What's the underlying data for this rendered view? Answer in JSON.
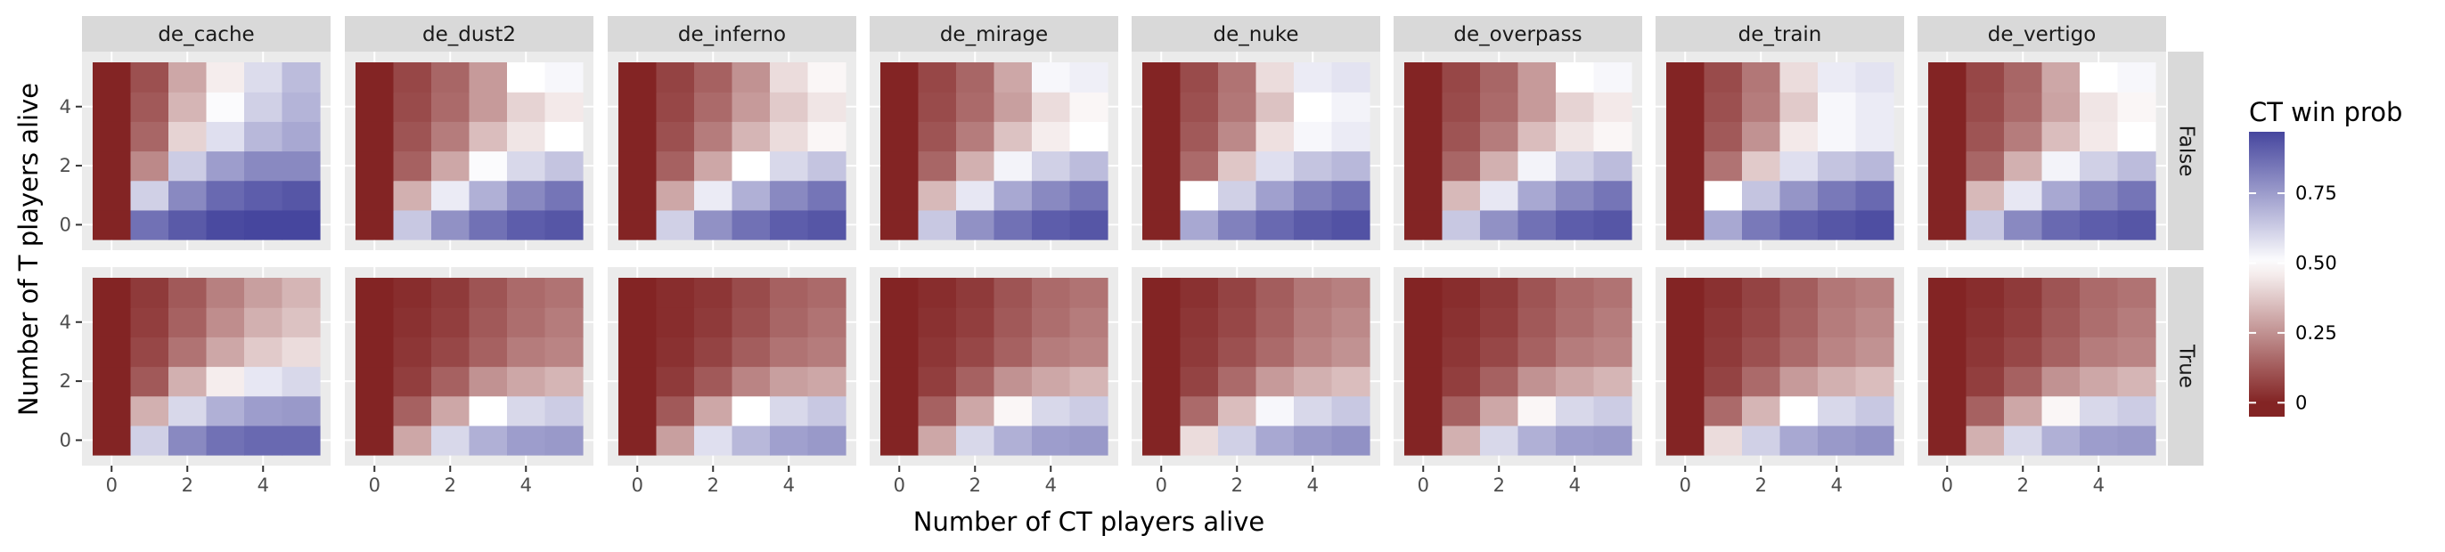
{
  "chart_data": {
    "type": "heatmap",
    "facet_columns": [
      "de_cache",
      "de_dust2",
      "de_inferno",
      "de_mirage",
      "de_nuke",
      "de_overpass",
      "de_train",
      "de_vertigo"
    ],
    "facet_rows": [
      "False",
      "True"
    ],
    "xlabel": "Number of CT players alive",
    "ylabel": "Number of T players alive",
    "x": [
      0,
      1,
      2,
      3,
      4,
      5
    ],
    "y": [
      0,
      1,
      2,
      3,
      4,
      5
    ],
    "x_ticks": [
      0,
      2,
      4
    ],
    "y_ticks": [
      0,
      2,
      4
    ],
    "xlim": [
      -0.5,
      5.5
    ],
    "ylim": [
      -0.5,
      5.5
    ],
    "grid": true,
    "legend": {
      "title": "CT win prob",
      "position": "right",
      "breaks": [
        0,
        0.25,
        0.5,
        0.75
      ],
      "break_labels": [
        "0",
        "0.25",
        "0.50",
        "0.75"
      ],
      "limits": [
        -0.05,
        0.97
      ]
    },
    "colors": {
      "low": "#832424",
      "mid": "#ffffff",
      "high": "#3a3a98",
      "midpoint": 0.5
    },
    "panels": {
      "False": {
        "de_cache": [
          [
            0.0,
            0.86,
            0.92,
            0.96,
            0.97,
            0.97
          ],
          [
            0.0,
            0.62,
            0.8,
            0.88,
            0.91,
            0.93
          ],
          [
            0.0,
            0.23,
            0.63,
            0.75,
            0.8,
            0.8
          ],
          [
            0.0,
            0.15,
            0.4,
            0.58,
            0.68,
            0.72
          ],
          [
            0.0,
            0.12,
            0.33,
            0.51,
            0.62,
            0.69
          ],
          [
            0.0,
            0.1,
            0.3,
            0.46,
            0.59,
            0.67
          ]
        ],
        "de_dust2": [
          [
            0.0,
            0.64,
            0.78,
            0.86,
            0.91,
            0.93
          ],
          [
            0.0,
            0.32,
            0.55,
            0.7,
            0.8,
            0.85
          ],
          [
            0.0,
            0.14,
            0.3,
            0.51,
            0.6,
            0.65
          ],
          [
            0.0,
            0.11,
            0.2,
            0.35,
            0.44,
            0.5
          ],
          [
            0.0,
            0.09,
            0.16,
            0.27,
            0.4,
            0.45
          ],
          [
            0.0,
            0.08,
            0.15,
            0.27,
            0.5,
            0.52
          ]
        ],
        "de_inferno": [
          [
            0.0,
            0.62,
            0.78,
            0.86,
            0.91,
            0.93
          ],
          [
            0.0,
            0.3,
            0.55,
            0.7,
            0.8,
            0.85
          ],
          [
            0.0,
            0.14,
            0.3,
            0.5,
            0.6,
            0.65
          ],
          [
            0.0,
            0.1,
            0.2,
            0.33,
            0.42,
            0.48
          ],
          [
            0.0,
            0.08,
            0.16,
            0.27,
            0.38,
            0.44
          ],
          [
            0.0,
            0.07,
            0.14,
            0.25,
            0.42,
            0.48
          ]
        ],
        "de_mirage": [
          [
            0.0,
            0.64,
            0.78,
            0.86,
            0.91,
            0.93
          ],
          [
            0.0,
            0.34,
            0.56,
            0.72,
            0.8,
            0.85
          ],
          [
            0.0,
            0.15,
            0.32,
            0.53,
            0.62,
            0.67
          ],
          [
            0.0,
            0.11,
            0.2,
            0.36,
            0.46,
            0.5
          ],
          [
            0.0,
            0.09,
            0.16,
            0.28,
            0.42,
            0.48
          ],
          [
            0.0,
            0.08,
            0.15,
            0.3,
            0.52,
            0.54
          ]
        ],
        "de_nuke": [
          [
            0.0,
            0.72,
            0.82,
            0.88,
            0.92,
            0.94
          ],
          [
            0.0,
            0.5,
            0.62,
            0.74,
            0.82,
            0.86
          ],
          [
            0.0,
            0.16,
            0.37,
            0.58,
            0.65,
            0.68
          ],
          [
            0.0,
            0.12,
            0.23,
            0.43,
            0.52,
            0.55
          ],
          [
            0.0,
            0.1,
            0.19,
            0.36,
            0.5,
            0.53
          ],
          [
            0.0,
            0.09,
            0.18,
            0.42,
            0.55,
            0.57
          ]
        ],
        "de_overpass": [
          [
            0.0,
            0.64,
            0.78,
            0.86,
            0.91,
            0.93
          ],
          [
            0.0,
            0.34,
            0.56,
            0.72,
            0.8,
            0.85
          ],
          [
            0.0,
            0.15,
            0.32,
            0.53,
            0.62,
            0.67
          ],
          [
            0.0,
            0.11,
            0.2,
            0.35,
            0.44,
            0.48
          ],
          [
            0.0,
            0.09,
            0.16,
            0.27,
            0.4,
            0.45
          ],
          [
            0.0,
            0.08,
            0.15,
            0.27,
            0.5,
            0.52
          ]
        ],
        "de_train": [
          [
            0.0,
            0.72,
            0.84,
            0.9,
            0.93,
            0.95
          ],
          [
            0.0,
            0.5,
            0.65,
            0.77,
            0.84,
            0.88
          ],
          [
            0.0,
            0.18,
            0.38,
            0.58,
            0.65,
            0.68
          ],
          [
            0.0,
            0.12,
            0.25,
            0.45,
            0.52,
            0.55
          ],
          [
            0.0,
            0.1,
            0.2,
            0.38,
            0.52,
            0.55
          ],
          [
            0.0,
            0.09,
            0.19,
            0.42,
            0.55,
            0.57
          ]
        ],
        "de_vertigo": [
          [
            0.0,
            0.64,
            0.8,
            0.88,
            0.91,
            0.93
          ],
          [
            0.0,
            0.34,
            0.56,
            0.72,
            0.8,
            0.85
          ],
          [
            0.0,
            0.15,
            0.32,
            0.53,
            0.62,
            0.67
          ],
          [
            0.0,
            0.11,
            0.2,
            0.35,
            0.45,
            0.5
          ],
          [
            0.0,
            0.09,
            0.16,
            0.29,
            0.44,
            0.48
          ],
          [
            0.0,
            0.08,
            0.15,
            0.3,
            0.5,
            0.52
          ]
        ]
      },
      "True": {
        "de_cache": [
          [
            0.0,
            0.62,
            0.8,
            0.86,
            0.88,
            0.88
          ],
          [
            0.0,
            0.32,
            0.6,
            0.7,
            0.75,
            0.76
          ],
          [
            0.0,
            0.12,
            0.32,
            0.46,
            0.56,
            0.6
          ],
          [
            0.0,
            0.08,
            0.18,
            0.3,
            0.38,
            0.42
          ],
          [
            0.0,
            0.06,
            0.14,
            0.24,
            0.32,
            0.36
          ],
          [
            0.0,
            0.05,
            0.12,
            0.21,
            0.28,
            0.33
          ]
        ],
        "de_dust2": [
          [
            0.0,
            0.3,
            0.6,
            0.7,
            0.75,
            0.76
          ],
          [
            0.0,
            0.14,
            0.3,
            0.5,
            0.6,
            0.63
          ],
          [
            0.0,
            0.06,
            0.14,
            0.25,
            0.3,
            0.33
          ],
          [
            0.0,
            0.04,
            0.08,
            0.14,
            0.2,
            0.22
          ],
          [
            0.0,
            0.03,
            0.06,
            0.12,
            0.17,
            0.2
          ],
          [
            0.0,
            0.02,
            0.05,
            0.11,
            0.16,
            0.18
          ]
        ],
        "de_inferno": [
          [
            0.0,
            0.28,
            0.58,
            0.68,
            0.74,
            0.76
          ],
          [
            0.0,
            0.12,
            0.3,
            0.5,
            0.6,
            0.64
          ],
          [
            0.0,
            0.05,
            0.12,
            0.22,
            0.28,
            0.3
          ],
          [
            0.0,
            0.03,
            0.07,
            0.13,
            0.18,
            0.2
          ],
          [
            0.0,
            0.02,
            0.05,
            0.1,
            0.15,
            0.18
          ],
          [
            0.0,
            0.02,
            0.04,
            0.09,
            0.14,
            0.16
          ]
        ],
        "de_mirage": [
          [
            0.0,
            0.3,
            0.6,
            0.7,
            0.75,
            0.76
          ],
          [
            0.0,
            0.14,
            0.3,
            0.48,
            0.6,
            0.63
          ],
          [
            0.0,
            0.06,
            0.14,
            0.25,
            0.3,
            0.33
          ],
          [
            0.0,
            0.04,
            0.08,
            0.14,
            0.2,
            0.22
          ],
          [
            0.0,
            0.03,
            0.06,
            0.12,
            0.17,
            0.2
          ],
          [
            0.0,
            0.02,
            0.05,
            0.11,
            0.16,
            0.18
          ]
        ],
        "de_nuke": [
          [
            0.0,
            0.42,
            0.62,
            0.72,
            0.76,
            0.78
          ],
          [
            0.0,
            0.16,
            0.35,
            0.52,
            0.6,
            0.64
          ],
          [
            0.0,
            0.07,
            0.16,
            0.27,
            0.32,
            0.35
          ],
          [
            0.0,
            0.05,
            0.1,
            0.16,
            0.22,
            0.25
          ],
          [
            0.0,
            0.04,
            0.08,
            0.14,
            0.2,
            0.23
          ],
          [
            0.0,
            0.03,
            0.07,
            0.13,
            0.19,
            0.21
          ]
        ],
        "de_overpass": [
          [
            0.0,
            0.32,
            0.6,
            0.7,
            0.75,
            0.76
          ],
          [
            0.0,
            0.14,
            0.3,
            0.48,
            0.6,
            0.63
          ],
          [
            0.0,
            0.06,
            0.14,
            0.25,
            0.3,
            0.33
          ],
          [
            0.0,
            0.04,
            0.08,
            0.14,
            0.2,
            0.22
          ],
          [
            0.0,
            0.03,
            0.06,
            0.12,
            0.17,
            0.2
          ],
          [
            0.0,
            0.02,
            0.05,
            0.11,
            0.16,
            0.18
          ]
        ],
        "de_train": [
          [
            0.0,
            0.42,
            0.62,
            0.72,
            0.76,
            0.78
          ],
          [
            0.0,
            0.16,
            0.33,
            0.5,
            0.6,
            0.64
          ],
          [
            0.0,
            0.07,
            0.16,
            0.27,
            0.32,
            0.35
          ],
          [
            0.0,
            0.05,
            0.1,
            0.16,
            0.22,
            0.25
          ],
          [
            0.0,
            0.04,
            0.08,
            0.14,
            0.2,
            0.23
          ],
          [
            0.0,
            0.03,
            0.07,
            0.13,
            0.19,
            0.21
          ]
        ],
        "de_vertigo": [
          [
            0.0,
            0.32,
            0.6,
            0.7,
            0.75,
            0.76
          ],
          [
            0.0,
            0.14,
            0.3,
            0.48,
            0.6,
            0.63
          ],
          [
            0.0,
            0.06,
            0.14,
            0.25,
            0.3,
            0.33
          ],
          [
            0.0,
            0.04,
            0.08,
            0.14,
            0.2,
            0.22
          ],
          [
            0.0,
            0.03,
            0.06,
            0.12,
            0.17,
            0.2
          ],
          [
            0.0,
            0.02,
            0.05,
            0.11,
            0.16,
            0.18
          ]
        ]
      }
    }
  }
}
